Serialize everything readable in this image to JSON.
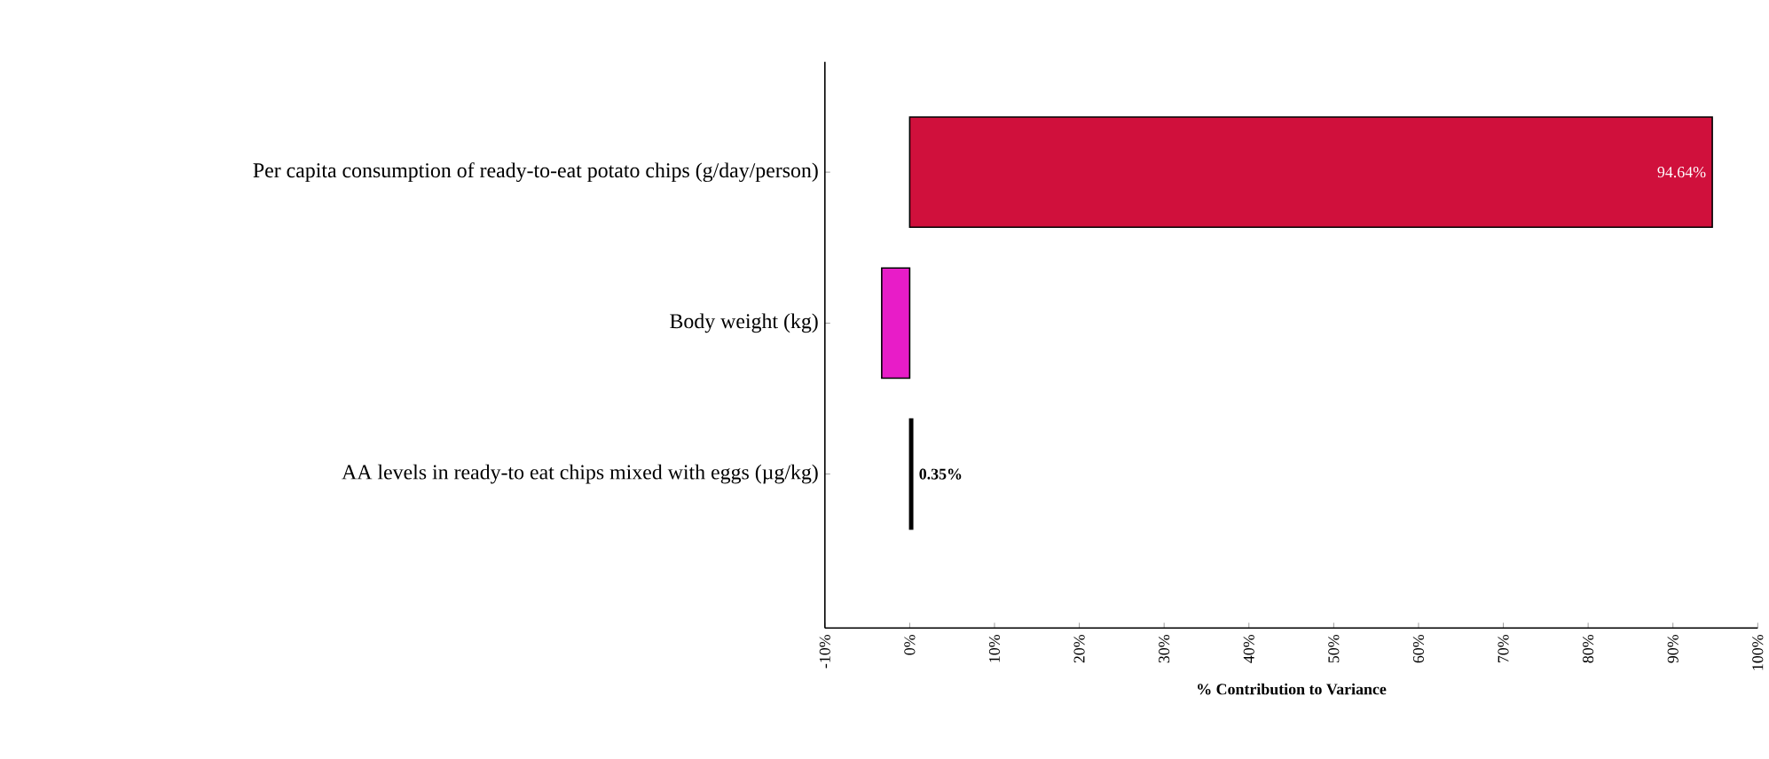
{
  "chart_data": {
    "type": "bar",
    "orientation": "horizontal",
    "xlabel": "% Contribution to Variance",
    "categories": [
      "Per capita consumption of ready-to-eat potato chips (g/day/person)",
      "Body weight (kg)",
      "AA levels in ready-to eat chips mixed with eggs (µg/kg)"
    ],
    "values": [
      94.64,
      -3.3,
      0.35
    ],
    "colors": [
      "#d0103c",
      "#e81cc8",
      "#000000"
    ],
    "value_labels": [
      "94.64%",
      null,
      "0.35%"
    ],
    "xlim": [
      -10,
      100
    ],
    "xticks": [
      {
        "value": -10,
        "label": "-10%"
      },
      {
        "value": 0,
        "label": "0%"
      },
      {
        "value": 10,
        "label": "10%"
      },
      {
        "value": 20,
        "label": "20%"
      },
      {
        "value": 30,
        "label": "30%"
      },
      {
        "value": 40,
        "label": "40%"
      },
      {
        "value": 50,
        "label": "50%"
      },
      {
        "value": 60,
        "label": "60%"
      },
      {
        "value": 70,
        "label": "70%"
      },
      {
        "value": 80,
        "label": "80%"
      },
      {
        "value": 90,
        "label": "90%"
      },
      {
        "value": 100,
        "label": "100%"
      }
    ],
    "tick_labels": true
  }
}
